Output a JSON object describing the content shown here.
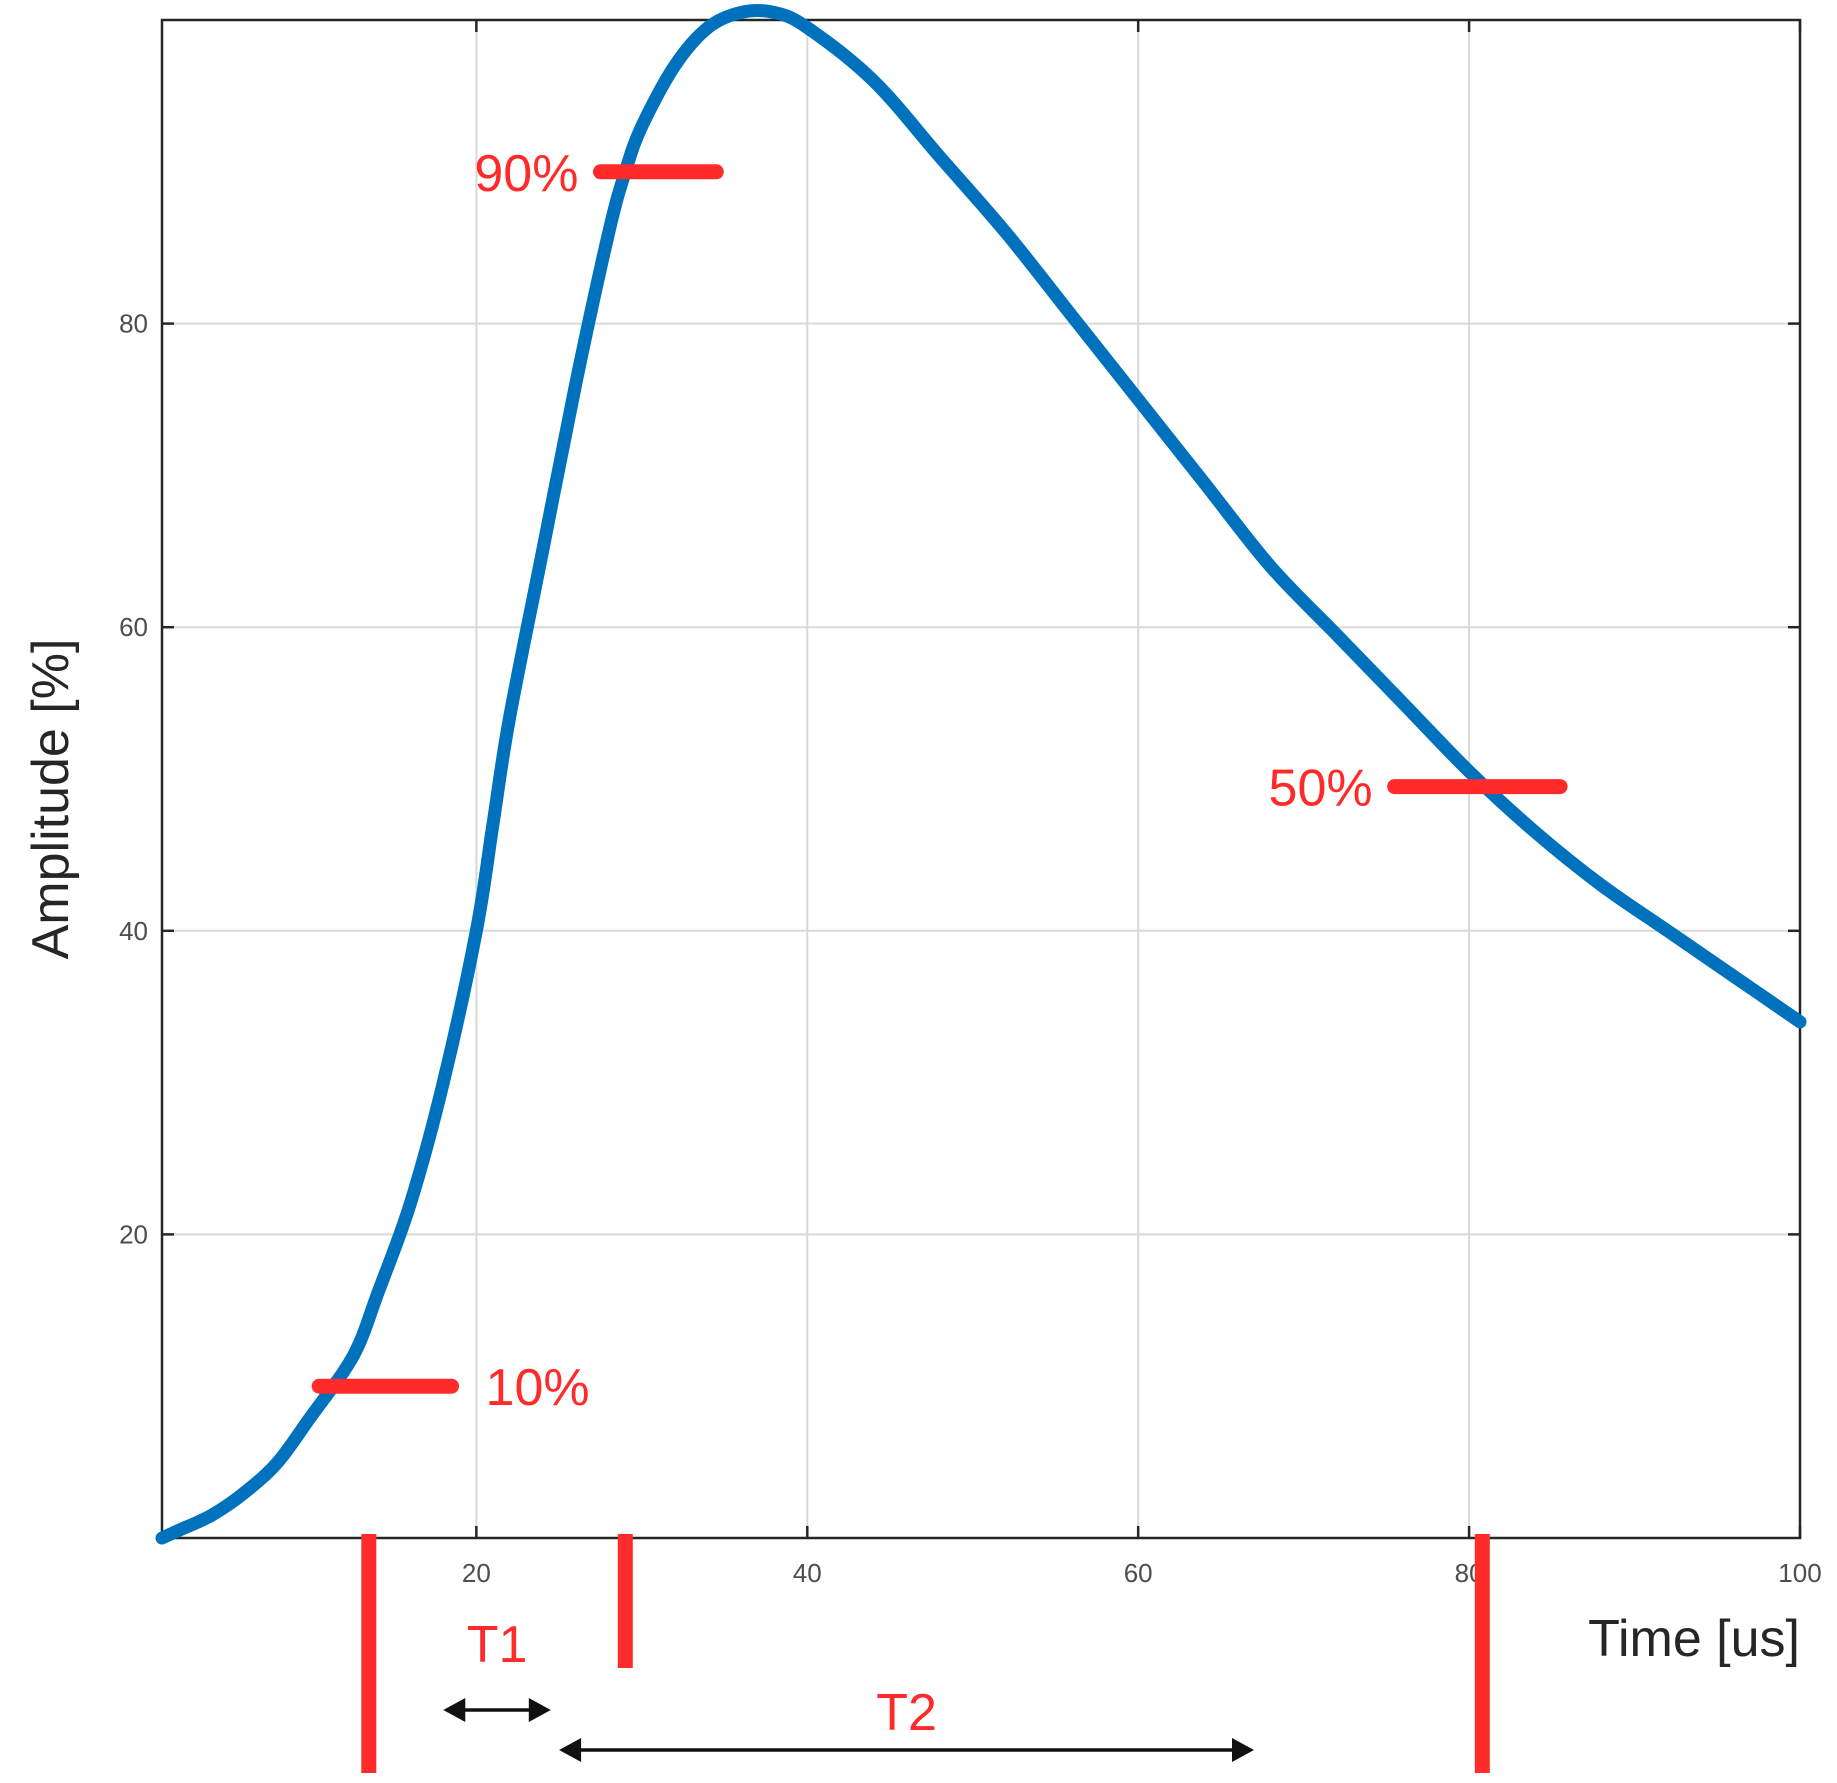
{
  "chart_data": {
    "type": "line",
    "xlabel": "Time [us]",
    "ylabel": "Amplitude [%]",
    "xlim": [
      1,
      100
    ],
    "ylim": [
      0,
      100
    ],
    "grid": true,
    "x_ticks": [
      20,
      40,
      60,
      80,
      100
    ],
    "y_ticks": [
      20,
      40,
      60,
      80
    ],
    "series": [
      {
        "color": "#0072bd",
        "x": [
          1,
          2,
          4,
          6,
          8,
          10,
          12,
          13,
          14,
          16,
          18,
          20,
          21,
          22,
          24,
          26,
          28,
          29,
          30,
          32,
          34,
          36,
          38,
          40,
          44,
          48,
          52,
          56,
          60,
          64,
          68,
          72,
          76,
          80,
          84,
          88,
          92,
          96,
          100
        ],
        "y": [
          0,
          0.5,
          1.5,
          3,
          5,
          8,
          11,
          13,
          16,
          22,
          30,
          40,
          47,
          54,
          65,
          76,
          86,
          90,
          93,
          97,
          99.5,
          100.5,
          100.5,
          99.5,
          96,
          91,
          86,
          80.5,
          75,
          69.5,
          64,
          59.5,
          55,
          50.5,
          46.5,
          43,
          40,
          37,
          34
        ]
      }
    ],
    "annotations": {
      "level_markers": [
        {
          "label": "10%",
          "x_from": 10.5,
          "x_to": 18.5,
          "y": 10,
          "label_side": "right"
        },
        {
          "label": "90%",
          "x_from": 27.5,
          "x_to": 34.5,
          "y": 90,
          "label_side": "left"
        },
        {
          "label": "50%",
          "x_from": 75.5,
          "x_to": 85.5,
          "y": 49.5,
          "label_side": "left"
        }
      ],
      "time_markers": [
        {
          "x": 13.5,
          "length": "long"
        },
        {
          "x": 29,
          "length": "short"
        },
        {
          "x": 80.8,
          "length": "long"
        }
      ],
      "intervals": [
        {
          "label": "T1",
          "x_from": 18,
          "x_to": 24.5
        },
        {
          "label": "T2",
          "x_from": 25,
          "x_to": 67
        }
      ],
      "color": "#ff2b2b"
    }
  }
}
